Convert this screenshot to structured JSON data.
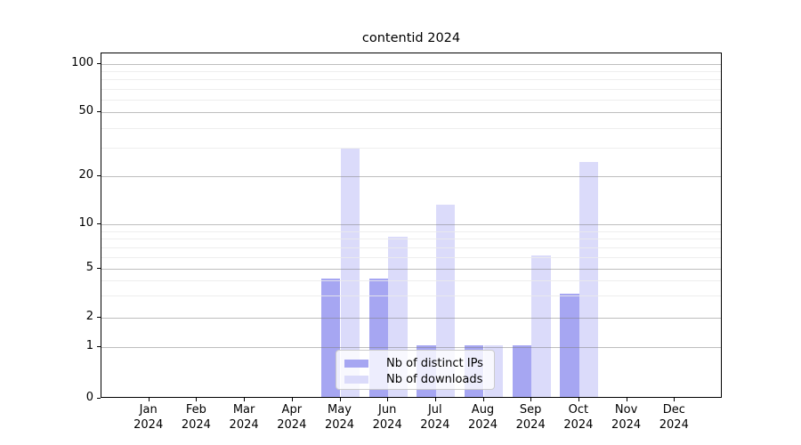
{
  "title": "contentid 2024",
  "chart_data": {
    "type": "bar",
    "title": "contentid 2024",
    "categories": [
      "Jan 2024",
      "Feb 2024",
      "Mar 2024",
      "Apr 2024",
      "May 2024",
      "Jun 2024",
      "Jul 2024",
      "Aug 2024",
      "Sep 2024",
      "Oct 2024",
      "Nov 2024",
      "Dec 2024"
    ],
    "series": [
      {
        "name": "Nb of distinct IPs",
        "color": "#a6a6f2",
        "values": [
          0,
          0,
          0,
          0,
          4,
          4,
          1,
          1,
          1,
          3,
          0,
          0
        ]
      },
      {
        "name": "Nb of downloads",
        "color": "#dbdbfa",
        "values": [
          0,
          0,
          0,
          0,
          29,
          8,
          13,
          1,
          6,
          24,
          0,
          0
        ]
      }
    ],
    "xlabel": "",
    "ylabel": "",
    "yscale": "symlog",
    "ylim": [
      0,
      115
    ],
    "yticks_major": [
      0,
      1,
      2,
      5,
      10,
      20,
      50,
      100
    ],
    "yticks_minor": [
      3,
      4,
      6,
      7,
      8,
      9,
      30,
      40,
      60,
      70,
      80,
      90
    ],
    "grid": "both",
    "legend_position": "lower center"
  }
}
